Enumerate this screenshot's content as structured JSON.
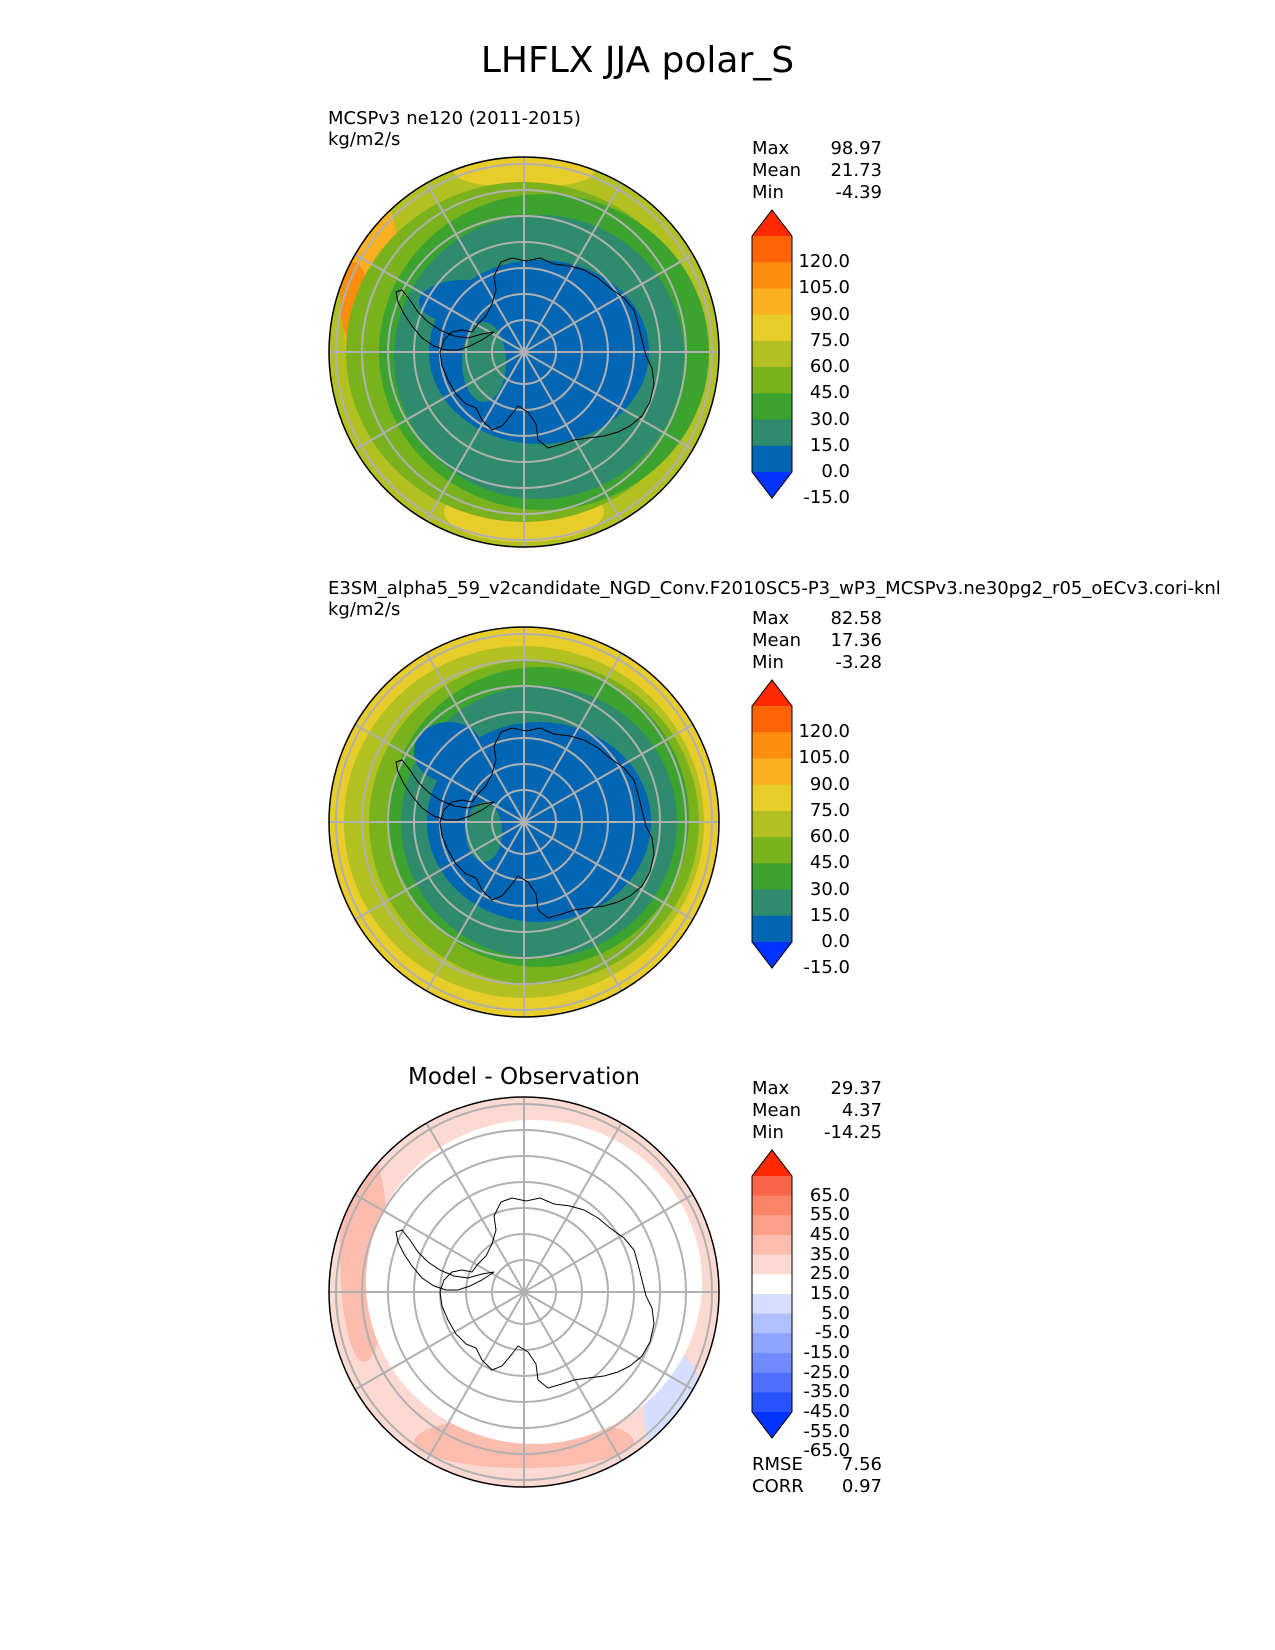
{
  "title": "LHFLX JJA polar_S",
  "colors": {
    "test_levels": [
      "#0033ff",
      "#0066b3",
      "#2e8b6e",
      "#3da32f",
      "#7ab21e",
      "#b2c022",
      "#e8cc2a",
      "#fbb022",
      "#fc8d0e",
      "#fd6406",
      "#ff2a00"
    ],
    "diff_levels": [
      "#0033ff",
      "#2952ff",
      "#4f6fff",
      "#6f8bff",
      "#8fa5ff",
      "#b0c0ff",
      "#d6dfff",
      "#ffffff",
      "#fcdad2",
      "#fcbcae",
      "#fca08c",
      "#fb8468",
      "#f96546",
      "#ff2a00"
    ],
    "land_outline": "#000000",
    "grid": "#b0b0b0"
  },
  "panels": [
    {
      "id": "test",
      "title_line1": "MCSPv3 ne120 (2011-2015)",
      "title_line2": "kg/m2/s",
      "stats": {
        "max_label": "Max",
        "max": "98.97",
        "mean_label": "Mean",
        "mean": "21.73",
        "min_label": "Min",
        "min": "-4.39"
      },
      "colorbar_labels": [
        "120.0",
        "105.0",
        "90.0",
        "75.0",
        "60.0",
        "45.0",
        "30.0",
        "15.0",
        "0.0",
        "-15.0"
      ]
    },
    {
      "id": "reference",
      "title_line1": "E3SM_alpha5_59_v2candidate_NGD_Conv.F2010SC5-P3_wP3_MCSPv3.ne30pg2_r05_oECv3.cori-knl",
      "title_line2": "kg/m2/s",
      "stats": {
        "max_label": "Max",
        "max": "82.58",
        "mean_label": "Mean",
        "mean": "17.36",
        "min_label": "Min",
        "min": "-3.28"
      },
      "colorbar_labels": [
        "120.0",
        "105.0",
        "90.0",
        "75.0",
        "60.0",
        "45.0",
        "30.0",
        "15.0",
        "0.0",
        "-15.0"
      ]
    },
    {
      "id": "difference",
      "title_center": "Model - Observation",
      "stats": {
        "max_label": "Max",
        "max": "29.37",
        "mean_label": "Mean",
        "mean": "4.37",
        "min_label": "Min",
        "min": "-14.25"
      },
      "colorbar_labels": [
        "65.0",
        "55.0",
        "45.0",
        "35.0",
        "25.0",
        "15.0",
        "5.0",
        "-5.0",
        "-15.0",
        "-25.0",
        "-35.0",
        "-45.0",
        "-55.0",
        "-65.0"
      ],
      "metrics": {
        "rmse_label": "RMSE",
        "rmse": "7.56",
        "corr_label": "CORR",
        "corr": "0.97"
      }
    }
  ],
  "chart_data": {
    "type": "heatmap",
    "projection": "south-polar-stereographic",
    "title": "LHFLX JJA polar_S",
    "variable": "LHFLX",
    "season": "JJA",
    "region": "polar_S",
    "units": "kg/m2/s",
    "test": {
      "name": "MCSPv3 ne120 (2011-2015)",
      "max": 98.97,
      "mean": 21.73,
      "min": -4.39,
      "levels": [
        -15,
        0,
        15,
        30,
        45,
        60,
        75,
        90,
        105,
        120
      ]
    },
    "reference": {
      "name": "E3SM_alpha5_59_v2candidate_NGD_Conv.F2010SC5-P3_wP3_MCSPv3.ne30pg2_r05_oECv3.cori-knl",
      "max": 82.58,
      "mean": 17.36,
      "min": -3.28,
      "levels": [
        -15,
        0,
        15,
        30,
        45,
        60,
        75,
        90,
        105,
        120
      ]
    },
    "difference": {
      "name": "Model - Observation",
      "max": 29.37,
      "mean": 4.37,
      "min": -14.25,
      "rmse": 7.56,
      "corr": 0.97,
      "levels": [
        -65,
        -55,
        -45,
        -35,
        -25,
        -15,
        -5,
        5,
        15,
        25,
        35,
        45,
        55,
        65
      ]
    }
  }
}
